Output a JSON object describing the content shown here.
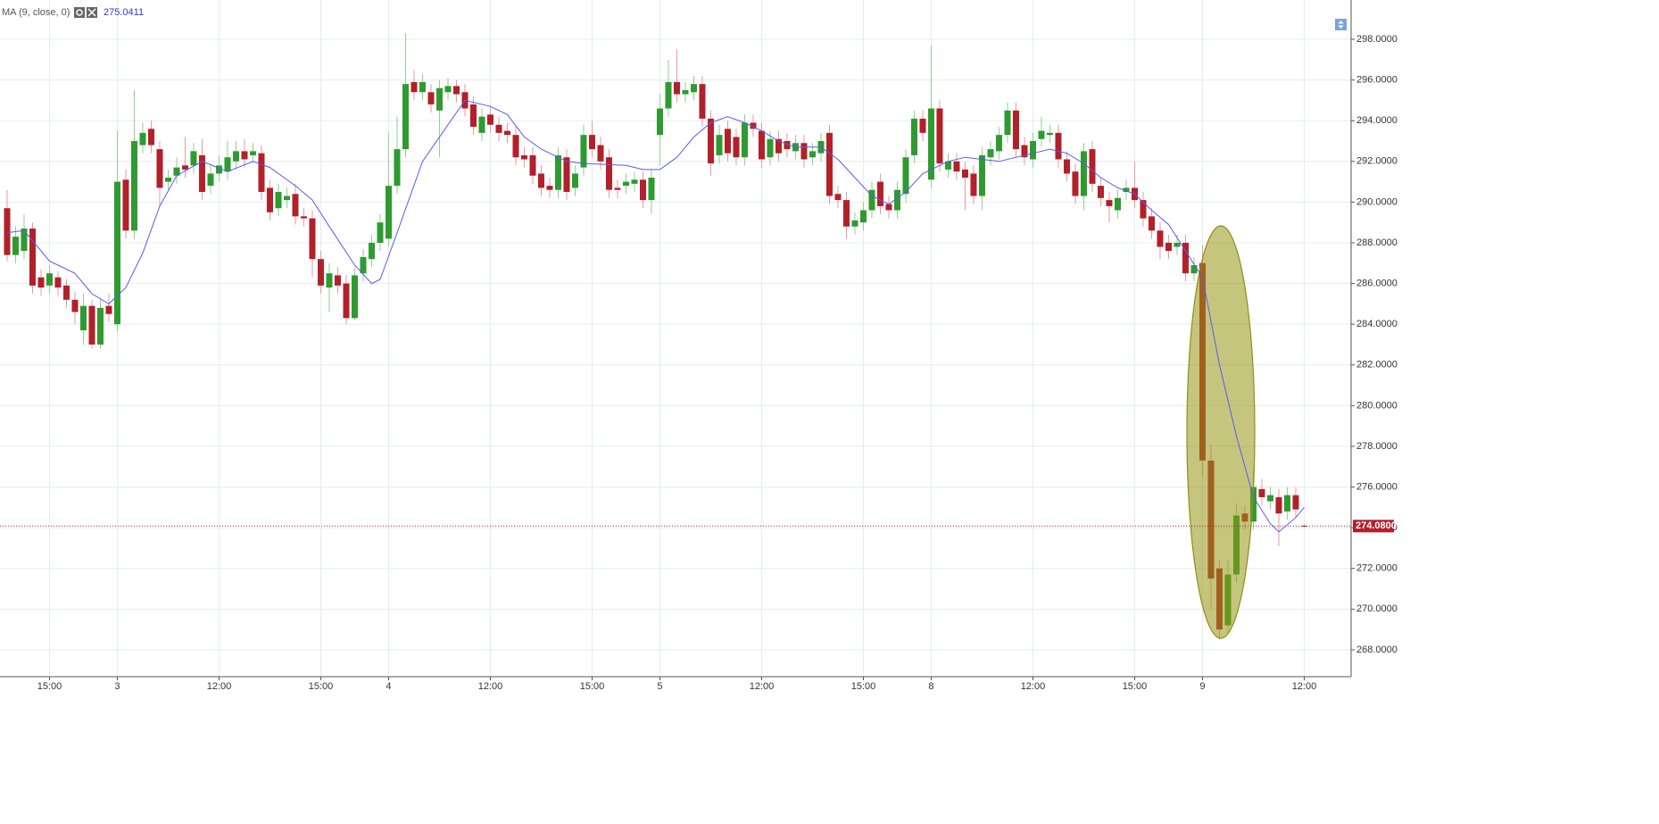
{
  "chart_data": {
    "type": "candlestick",
    "ma": {
      "name": "MA (9, close, 0)",
      "current": 275.0411,
      "color": "#5a5af0",
      "x": [
        0,
        2,
        5,
        8,
        10,
        12,
        14,
        16,
        18,
        20,
        23,
        26,
        29,
        31,
        34,
        36,
        38,
        41,
        43,
        44,
        46,
        49,
        52,
        54,
        57,
        59,
        61,
        63,
        66,
        68,
        73,
        75,
        77,
        79,
        81,
        83,
        85,
        87,
        89,
        91,
        93,
        96,
        98,
        100,
        102,
        104,
        106,
        108,
        111,
        113,
        115,
        117,
        119,
        121,
        123,
        125,
        127,
        129,
        131,
        133,
        135,
        137,
        139,
        141,
        143,
        145,
        147,
        149,
        150,
        152,
        153
      ],
      "values": [
        288.5,
        288.6,
        287.1,
        286.5,
        285.5,
        285.0,
        285.8,
        287.5,
        289.8,
        291.3,
        292.0,
        291.5,
        292.0,
        291.7,
        290.8,
        290.1,
        288.8,
        286.9,
        286.0,
        286.2,
        288.5,
        292.0,
        293.8,
        295.0,
        294.7,
        294.3,
        293.2,
        292.6,
        292.0,
        291.9,
        291.8,
        291.6,
        291.6,
        292.2,
        293.2,
        293.9,
        294.2,
        293.9,
        293.5,
        293.0,
        292.7,
        292.7,
        292.1,
        291.2,
        290.3,
        289.9,
        290.5,
        291.4,
        292.0,
        292.2,
        292.1,
        292.0,
        292.2,
        292.4,
        292.6,
        292.4,
        291.9,
        291.2,
        290.7,
        290.4,
        289.6,
        288.9,
        287.6,
        286.3,
        282.0,
        278.5,
        275.5,
        274.2,
        273.8,
        274.5,
        275.0
      ]
    },
    "up_color": "#2f9a30",
    "down_color": "#b2202a",
    "open": [
      289.7,
      287.4,
      287.6,
      288.7,
      286.3,
      285.9,
      286.3,
      285.9,
      285.2,
      283.7,
      284.9,
      283.0,
      284.9,
      284.0,
      291.1,
      288.6,
      292.8,
      293.6,
      292.6,
      291.0,
      291.3,
      291.8,
      291.8,
      292.3,
      290.8,
      291.4,
      291.5,
      292.0,
      292.5,
      292.3,
      292.4,
      290.7,
      289.7,
      290.1,
      290.4,
      289.3,
      289.2,
      287.2,
      285.8,
      286.4,
      286.0,
      284.3,
      286.5,
      287.2,
      288.0,
      288.2,
      290.8,
      292.6,
      295.9,
      295.4,
      295.4,
      294.5,
      295.4,
      295.7,
      295.4,
      294.8,
      293.4,
      294.3,
      293.8,
      293.5,
      293.3,
      292.3,
      292.3,
      291.4,
      290.8,
      290.6,
      292.2,
      290.7,
      291.7,
      293.3,
      292.8,
      292.2,
      290.7,
      290.8,
      290.9,
      291.1,
      290.1,
      293.3,
      294.6,
      295.9,
      295.3,
      295.4,
      295.8,
      294.1,
      292.3,
      293.6,
      293.2,
      292.2,
      293.9,
      293.5,
      292.2,
      293.1,
      293.0,
      292.5,
      292.9,
      292.2,
      292.4,
      293.4,
      290.4,
      290.1,
      288.8,
      289.0,
      289.6,
      291.0,
      289.9,
      289.6,
      290.4,
      292.3,
      294.1,
      291.1,
      294.6,
      291.6,
      292.0,
      291.6,
      291.4,
      290.3,
      292.2,
      292.5,
      293.3,
      294.5,
      292.8,
      292.1,
      293.1,
      293.3,
      293.4,
      292.1,
      291.5,
      290.3,
      292.6,
      290.8,
      290.1,
      289.6,
      290.5,
      290.7,
      290.1,
      289.3,
      288.6,
      288.0,
      287.8,
      288.0,
      286.5,
      287.0,
      277.3,
      272.0,
      269.2,
      271.7,
      274.7,
      274.3,
      275.9,
      275.3,
      275.5,
      274.8,
      275.6,
      274.1
    ],
    "high": [
      290.6,
      288.8,
      289.4,
      289.0,
      286.7,
      286.9,
      286.6,
      286.2,
      285.6,
      285.5,
      285.2,
      285.3,
      285.5,
      293.5,
      291.6,
      295.5,
      293.9,
      294.0,
      293.0,
      291.6,
      292.2,
      293.2,
      292.9,
      293.1,
      291.9,
      292.3,
      293.0,
      293.0,
      293.1,
      292.9,
      292.8,
      291.1,
      290.9,
      290.7,
      290.9,
      289.7,
      289.6,
      287.6,
      287.0,
      286.8,
      286.4,
      286.8,
      287.7,
      288.4,
      289.4,
      293.4,
      294.2,
      298.3,
      296.5,
      296.3,
      295.8,
      296.0,
      296.1,
      296.0,
      295.8,
      295.2,
      294.6,
      294.7,
      294.2,
      293.9,
      293.7,
      292.7,
      292.7,
      291.8,
      291.2,
      292.7,
      292.6,
      291.8,
      293.8,
      294.0,
      293.2,
      292.6,
      291.1,
      291.4,
      291.5,
      291.5,
      291.6,
      295.3,
      297.0,
      297.5,
      295.9,
      296.2,
      296.2,
      294.5,
      293.8,
      294.0,
      293.6,
      294.3,
      294.3,
      293.9,
      293.5,
      293.5,
      293.4,
      293.3,
      293.3,
      292.9,
      293.4,
      293.8,
      290.8,
      290.5,
      289.5,
      290.0,
      291.0,
      291.4,
      290.3,
      291.0,
      292.6,
      294.5,
      294.5,
      297.7,
      295.0,
      292.4,
      292.4,
      292.0,
      291.8,
      292.7,
      293.0,
      293.7,
      294.9,
      294.9,
      293.2,
      293.4,
      294.2,
      293.8,
      293.8,
      292.5,
      291.9,
      292.9,
      293.0,
      291.2,
      290.5,
      290.6,
      291.1,
      292.0,
      290.5,
      289.7,
      289.0,
      288.4,
      288.4,
      288.4,
      287.3,
      287.9,
      278.1,
      272.4,
      272.4,
      275.2,
      275.1,
      276.8,
      276.4,
      276.0,
      275.9,
      276.0,
      276.0,
      274.2
    ],
    "low": [
      287.1,
      287.0,
      287.2,
      285.5,
      285.4,
      285.5,
      285.4,
      284.8,
      284.0,
      283.0,
      282.8,
      282.8,
      284.1,
      283.6,
      288.2,
      288.2,
      292.4,
      292.4,
      289.8,
      290.6,
      290.9,
      291.2,
      291.4,
      290.1,
      290.4,
      291.0,
      291.1,
      291.6,
      291.7,
      291.9,
      290.1,
      289.1,
      289.3,
      289.7,
      288.9,
      288.8,
      286.3,
      285.5,
      284.6,
      285.5,
      284.0,
      284.2,
      286.1,
      286.8,
      287.6,
      287.8,
      290.4,
      292.2,
      295.0,
      295.0,
      294.4,
      292.2,
      295.0,
      294.9,
      294.2,
      293.3,
      293.0,
      293.4,
      293.0,
      292.9,
      291.8,
      291.7,
      290.9,
      290.3,
      290.2,
      290.2,
      290.1,
      290.3,
      291.3,
      292.2,
      291.6,
      290.2,
      290.2,
      290.4,
      290.5,
      289.7,
      289.4,
      291.8,
      294.2,
      294.9,
      294.9,
      295.0,
      293.7,
      291.3,
      291.9,
      292.0,
      291.8,
      291.8,
      293.2,
      291.7,
      291.8,
      292.0,
      292.2,
      292.1,
      291.7,
      291.8,
      292.0,
      289.9,
      289.7,
      288.2,
      288.4,
      288.6,
      289.2,
      289.4,
      289.2,
      289.2,
      290.0,
      291.9,
      293.0,
      290.7,
      291.5,
      291.2,
      291.1,
      289.6,
      289.9,
      289.6,
      291.8,
      292.1,
      292.9,
      292.2,
      291.8,
      291.7,
      292.7,
      292.9,
      291.7,
      291.0,
      289.9,
      289.6,
      290.5,
      289.8,
      289.0,
      289.2,
      290.1,
      289.7,
      288.8,
      288.2,
      287.2,
      287.2,
      287.4,
      286.1,
      286.1,
      276.5,
      270.0,
      268.5,
      268.8,
      271.3,
      273.9,
      273.9,
      275.1,
      274.9,
      273.1,
      274.4,
      274.5,
      274.0
    ],
    "close": [
      287.4,
      288.3,
      288.7,
      285.9,
      285.8,
      286.5,
      285.8,
      285.2,
      284.6,
      284.9,
      283.0,
      284.8,
      284.5,
      291.0,
      288.6,
      293.0,
      293.4,
      292.8,
      290.7,
      291.2,
      291.7,
      291.6,
      292.5,
      290.5,
      291.4,
      291.8,
      292.2,
      292.5,
      292.1,
      292.5,
      290.5,
      289.5,
      290.5,
      290.3,
      289.3,
      289.2,
      287.2,
      285.9,
      286.5,
      285.9,
      284.3,
      286.4,
      287.3,
      288.0,
      289.0,
      290.8,
      292.6,
      295.8,
      295.4,
      295.9,
      294.8,
      295.6,
      295.7,
      295.3,
      294.6,
      293.7,
      294.2,
      293.8,
      293.4,
      293.3,
      292.2,
      292.1,
      291.3,
      290.7,
      290.6,
      292.3,
      290.5,
      291.4,
      293.3,
      292.6,
      292.0,
      290.6,
      290.6,
      291.0,
      291.1,
      290.1,
      291.2,
      294.6,
      295.9,
      295.3,
      295.5,
      295.8,
      294.1,
      291.9,
      293.3,
      292.4,
      292.2,
      293.9,
      293.6,
      292.1,
      293.1,
      292.4,
      292.6,
      292.9,
      292.1,
      292.5,
      293.0,
      290.3,
      290.1,
      288.8,
      289.1,
      289.6,
      290.6,
      289.8,
      289.6,
      290.6,
      292.2,
      294.1,
      293.4,
      294.6,
      291.9,
      292.0,
      291.5,
      291.2,
      290.3,
      292.3,
      292.6,
      293.3,
      294.5,
      292.6,
      292.2,
      293.0,
      293.5,
      293.4,
      292.1,
      291.4,
      290.3,
      292.5,
      290.9,
      290.2,
      289.8,
      290.2,
      290.7,
      290.1,
      289.2,
      288.6,
      287.8,
      287.6,
      288.0,
      286.5,
      286.9,
      277.3,
      271.5,
      269.0,
      271.7,
      274.6,
      274.3,
      276.0,
      275.5,
      275.6,
      274.7,
      275.6,
      274.9,
      274.08
    ],
    "last_price": {
      "value": 274.08,
      "label": "274.0800"
    },
    "xlim": [
      -0.84,
      158.53
    ],
    "xticks": [
      {
        "value": 5,
        "label": "15:00"
      },
      {
        "value": 13,
        "label": "3"
      },
      {
        "value": 25,
        "label": "12:00"
      },
      {
        "value": 37,
        "label": "15:00"
      },
      {
        "value": 45,
        "label": "4"
      },
      {
        "value": 57,
        "label": "12:00"
      },
      {
        "value": 69,
        "label": "15:00"
      },
      {
        "value": 77,
        "label": "5"
      },
      {
        "value": 89,
        "label": "12:00"
      },
      {
        "value": 101,
        "label": "15:00"
      },
      {
        "value": 109,
        "label": "8"
      },
      {
        "value": 121,
        "label": "12:00"
      },
      {
        "value": 133,
        "label": "15:00"
      },
      {
        "value": 141,
        "label": "9"
      },
      {
        "value": 153,
        "label": "12:00"
      }
    ],
    "ylim": [
      266.68,
      299.93
    ],
    "yticks": [
      {
        "value": 268,
        "label": "268.0000"
      },
      {
        "value": 270,
        "label": "270.0000"
      },
      {
        "value": 272,
        "label": "272.0000"
      },
      {
        "value": 274,
        "label": "274.0000"
      },
      {
        "value": 276,
        "label": "276.0000"
      },
      {
        "value": 278,
        "label": "278.0000"
      },
      {
        "value": 280,
        "label": "280.0000"
      },
      {
        "value": 282,
        "label": "282.0000"
      },
      {
        "value": 284,
        "label": "284.0000"
      },
      {
        "value": 286,
        "label": "286.0000"
      },
      {
        "value": 288,
        "label": "288.0000"
      },
      {
        "value": 290,
        "label": "290.0000"
      },
      {
        "value": 292,
        "label": "292.0000"
      },
      {
        "value": 294,
        "label": "294.0000"
      },
      {
        "value": 296,
        "label": "296.0000"
      },
      {
        "value": 298,
        "label": "298.0000"
      }
    ],
    "grid": true
  }
}
